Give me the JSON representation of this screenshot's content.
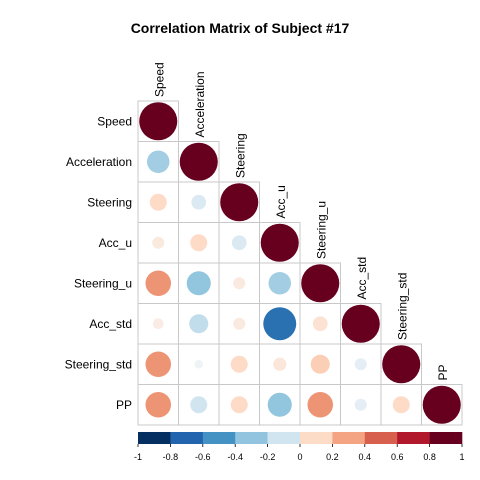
{
  "chart_data": {
    "type": "heatmap",
    "title": "Correlation Matrix of Subject #17",
    "variables": [
      "Speed",
      "Acceleration",
      "Steering",
      "Acc_u",
      "Steering_u",
      "Acc_std",
      "Steering_std",
      "PP"
    ],
    "matrix_lower": [
      [
        1
      ],
      [
        -0.35,
        1
      ],
      [
        0.2,
        -0.15,
        1
      ],
      [
        0.1,
        0.2,
        -0.15,
        1
      ],
      [
        0.45,
        -0.4,
        0.1,
        -0.35,
        1
      ],
      [
        0.08,
        -0.25,
        0.1,
        -0.75,
        0.15,
        1
      ],
      [
        0.45,
        -0.05,
        0.2,
        0.12,
        0.25,
        -0.1,
        1
      ],
      [
        0.45,
        -0.2,
        0.2,
        -0.4,
        0.45,
        -0.1,
        0.2,
        1
      ]
    ],
    "colorbar": {
      "range": [
        -1,
        1
      ],
      "tick_labels": [
        "-1",
        "-0.8",
        "-0.6",
        "-0.4",
        "-0.2",
        "0",
        "0.2",
        "0.4",
        "0.6",
        "0.8",
        "1"
      ],
      "colors": [
        "#062f61",
        "#2264ad",
        "#4492c4",
        "#92c4df",
        "#d1e5f0",
        "#fcdbc7",
        "#f4a482",
        "#d6604d",
        "#b2182b",
        "#67001f"
      ]
    },
    "grid": true,
    "legend": "bottom"
  }
}
